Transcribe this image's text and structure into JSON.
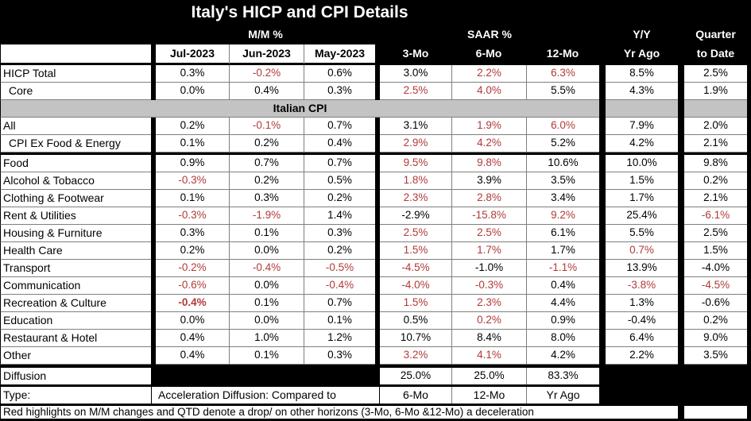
{
  "colors": {
    "negative_red": "#b03a38",
    "band_gray": "#c3c3c3",
    "header_black": "#000000"
  },
  "header": {
    "mm_label": "M/M %",
    "saar_label": "SAAR %",
    "yy_line1": "Y/Y",
    "yy_line2": "Yr Ago",
    "qtd_line1": "Quarter",
    "qtd_line2": "to Date",
    "mm_cols": [
      "Jul-2023",
      "Jun-2023",
      "May-2023"
    ],
    "saar_cols": [
      "3-Mo",
      "6-Mo",
      "12-Mo"
    ]
  },
  "chart_data": {
    "type": "table",
    "title": "Italy's HICP and CPI Details",
    "columns": [
      "M/M % Jul-2023",
      "M/M % Jun-2023",
      "M/M % May-2023",
      "SAAR % 3-Mo",
      "SAAR % 6-Mo",
      "SAAR % 12-Mo",
      "Y/Y Yr Ago",
      "Quarter to Date"
    ],
    "section_band": "Italian CPI",
    "hicp_rows": [
      {
        "label": "HICP Total",
        "values": [
          {
            "v": "0.3%"
          },
          {
            "v": "-0.2%",
            "red": true
          },
          {
            "v": "0.6%"
          },
          {
            "v": "3.0%"
          },
          {
            "v": "2.2%",
            "red": true
          },
          {
            "v": "6.3%",
            "red": true
          },
          {
            "v": "8.5%"
          },
          {
            "v": "2.5%"
          }
        ]
      },
      {
        "label": "Core",
        "indent": true,
        "values": [
          {
            "v": "0.0%"
          },
          {
            "v": "0.4%"
          },
          {
            "v": "0.3%"
          },
          {
            "v": "2.5%",
            "red": true
          },
          {
            "v": "4.0%",
            "red": true
          },
          {
            "v": "5.5%"
          },
          {
            "v": "4.3%"
          },
          {
            "v": "1.9%"
          }
        ]
      }
    ],
    "cpi_rows": [
      {
        "label": "All",
        "values": [
          {
            "v": "0.2%"
          },
          {
            "v": "-0.1%",
            "red": true
          },
          {
            "v": "0.7%"
          },
          {
            "v": "3.1%"
          },
          {
            "v": "1.9%",
            "red": true
          },
          {
            "v": "6.0%",
            "red": true
          },
          {
            "v": "7.9%"
          },
          {
            "v": "2.0%"
          }
        ]
      },
      {
        "label": "CPI Ex Food & Energy",
        "indent": true,
        "values": [
          {
            "v": "0.1%"
          },
          {
            "v": "0.2%"
          },
          {
            "v": "0.4%"
          },
          {
            "v": "2.9%",
            "red": true
          },
          {
            "v": "4.2%",
            "red": true
          },
          {
            "v": "5.2%"
          },
          {
            "v": "4.2%"
          },
          {
            "v": "2.1%"
          }
        ]
      },
      {
        "label": "Food",
        "values": [
          {
            "v": "0.9%"
          },
          {
            "v": "0.7%"
          },
          {
            "v": "0.7%"
          },
          {
            "v": "9.5%",
            "red": true
          },
          {
            "v": "9.8%",
            "red": true
          },
          {
            "v": "10.6%"
          },
          {
            "v": "10.0%"
          },
          {
            "v": "9.8%"
          }
        ]
      },
      {
        "label": "Alcohol & Tobacco",
        "values": [
          {
            "v": "-0.3%",
            "red": true
          },
          {
            "v": "0.2%"
          },
          {
            "v": "0.5%"
          },
          {
            "v": "1.8%",
            "red": true
          },
          {
            "v": "3.9%"
          },
          {
            "v": "3.5%"
          },
          {
            "v": "1.5%"
          },
          {
            "v": "0.2%"
          }
        ]
      },
      {
        "label": "Clothing & Footwear",
        "values": [
          {
            "v": "0.1%"
          },
          {
            "v": "0.3%"
          },
          {
            "v": "0.2%"
          },
          {
            "v": "2.3%",
            "red": true
          },
          {
            "v": "2.8%",
            "red": true
          },
          {
            "v": "3.4%"
          },
          {
            "v": "1.7%"
          },
          {
            "v": "2.1%"
          }
        ]
      },
      {
        "label": "Rent & Utilities",
        "values": [
          {
            "v": "-0.3%",
            "red": true
          },
          {
            "v": "-1.9%",
            "red": true
          },
          {
            "v": "1.4%"
          },
          {
            "v": "-2.9%"
          },
          {
            "v": "-15.8%",
            "red": true
          },
          {
            "v": "9.2%",
            "red": true
          },
          {
            "v": "25.4%"
          },
          {
            "v": "-6.1%",
            "red": true
          }
        ]
      },
      {
        "label": "Housing & Furniture",
        "values": [
          {
            "v": "0.3%"
          },
          {
            "v": "0.1%"
          },
          {
            "v": "0.3%"
          },
          {
            "v": "2.5%",
            "red": true
          },
          {
            "v": "2.5%",
            "red": true
          },
          {
            "v": "6.1%"
          },
          {
            "v": "5.5%"
          },
          {
            "v": "2.5%"
          }
        ]
      },
      {
        "label": "Health Care",
        "values": [
          {
            "v": "0.2%"
          },
          {
            "v": "0.0%"
          },
          {
            "v": "0.2%"
          },
          {
            "v": "1.5%",
            "red": true
          },
          {
            "v": "1.7%",
            "red": true
          },
          {
            "v": "1.7%"
          },
          {
            "v": "0.7%",
            "red": true
          },
          {
            "v": "1.5%"
          }
        ]
      },
      {
        "label": "Transport",
        "values": [
          {
            "v": "-0.2%",
            "red": true
          },
          {
            "v": "-0.4%",
            "red": true
          },
          {
            "v": "-0.5%",
            "red": true
          },
          {
            "v": "-4.5%",
            "red": true
          },
          {
            "v": "-1.0%"
          },
          {
            "v": "-1.1%",
            "red": true
          },
          {
            "v": "13.9%"
          },
          {
            "v": "-4.0%"
          }
        ]
      },
      {
        "label": "Communication",
        "values": [
          {
            "v": "-0.6%",
            "red": true
          },
          {
            "v": "0.0%"
          },
          {
            "v": "-0.4%",
            "red": true
          },
          {
            "v": "-4.0%",
            "red": true
          },
          {
            "v": "-0.3%",
            "red": true
          },
          {
            "v": "0.4%"
          },
          {
            "v": "-3.8%",
            "red": true
          },
          {
            "v": "-4.5%",
            "red": true
          }
        ]
      },
      {
        "label": "Recreation & Culture",
        "values": [
          {
            "v": "-0.4%",
            "red": true,
            "bold": true
          },
          {
            "v": "0.1%"
          },
          {
            "v": "0.7%"
          },
          {
            "v": "1.5%",
            "red": true
          },
          {
            "v": "2.3%",
            "red": true
          },
          {
            "v": "4.4%"
          },
          {
            "v": "1.3%"
          },
          {
            "v": "-0.6%"
          }
        ]
      },
      {
        "label": "Education",
        "values": [
          {
            "v": "0.0%"
          },
          {
            "v": "0.0%"
          },
          {
            "v": "0.1%"
          },
          {
            "v": "0.5%"
          },
          {
            "v": "0.2%",
            "red": true
          },
          {
            "v": "0.9%"
          },
          {
            "v": "-0.4%"
          },
          {
            "v": "0.2%"
          }
        ]
      },
      {
        "label": "Restaurant & Hotel",
        "values": [
          {
            "v": "0.4%"
          },
          {
            "v": "1.0%"
          },
          {
            "v": "1.2%"
          },
          {
            "v": "10.7%"
          },
          {
            "v": "8.4%"
          },
          {
            "v": "8.0%"
          },
          {
            "v": "6.4%"
          },
          {
            "v": "9.0%"
          }
        ]
      },
      {
        "label": "Other",
        "values": [
          {
            "v": "0.4%"
          },
          {
            "v": "0.1%"
          },
          {
            "v": "0.3%"
          },
          {
            "v": "3.2%",
            "red": true
          },
          {
            "v": "4.1%",
            "red": true
          },
          {
            "v": "4.2%"
          },
          {
            "v": "2.2%"
          },
          {
            "v": "3.5%"
          }
        ]
      }
    ],
    "diffusion": {
      "label": "Diffusion",
      "values": [
        "25.0%",
        "25.0%",
        "83.3%"
      ]
    },
    "type_row": {
      "label": "Type:",
      "left_text": "Acceleration  Diffusion: Compared to",
      "cols": [
        "6-Mo",
        "12-Mo",
        "Yr Ago"
      ]
    },
    "footnote": "Red highlights on M/M changes and QTD denote a drop/ on other horizons (3-Mo, 6-Mo &12-Mo) a deceleration"
  }
}
